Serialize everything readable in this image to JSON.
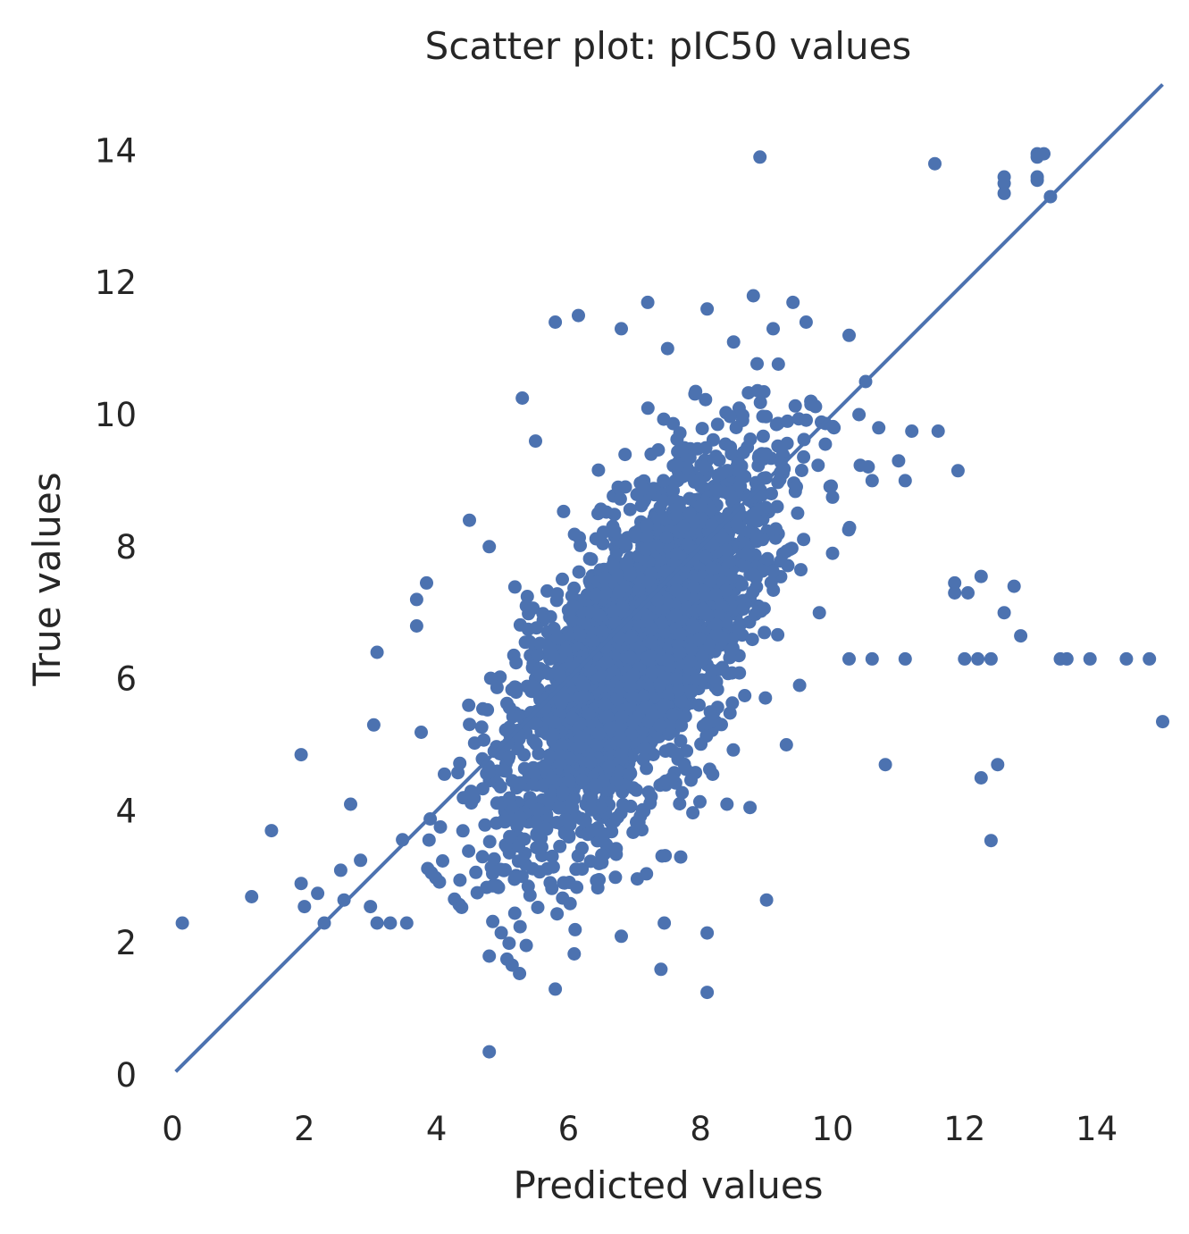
{
  "chart_data": {
    "type": "scatter",
    "title": "Scatter plot: pIC50 values",
    "xlabel": "Predicted values",
    "ylabel": "True values",
    "xlim": [
      0,
      15
    ],
    "ylim": [
      0,
      15
    ],
    "xticks": [
      "0",
      "2",
      "4",
      "6",
      "8",
      "10",
      "12",
      "14"
    ],
    "yticks": [
      "0",
      "2",
      "4",
      "6",
      "8",
      "10",
      "12",
      "14"
    ],
    "grid": false,
    "color": "#4c72b0",
    "reference_line": {
      "x": [
        0.05,
        15
      ],
      "y": [
        0.05,
        15
      ]
    },
    "series": [
      {
        "points": [
          [
            0.15,
            2.3
          ],
          [
            1.2,
            2.7
          ],
          [
            1.5,
            3.7
          ],
          [
            1.95,
            2.9
          ],
          [
            2.0,
            2.55
          ],
          [
            2.2,
            2.75
          ],
          [
            2.3,
            2.3
          ],
          [
            2.55,
            3.1
          ],
          [
            2.6,
            2.65
          ],
          [
            2.85,
            3.25
          ],
          [
            3.0,
            2.55
          ],
          [
            3.1,
            2.3
          ],
          [
            3.3,
            2.3
          ],
          [
            3.55,
            2.3
          ],
          [
            1.95,
            4.85
          ],
          [
            3.1,
            6.4
          ],
          [
            3.7,
            7.2
          ],
          [
            3.85,
            7.45
          ],
          [
            3.7,
            6.8
          ],
          [
            3.05,
            5.3
          ],
          [
            2.7,
            4.1
          ],
          [
            5.8,
            11.4
          ],
          [
            6.15,
            11.5
          ],
          [
            5.3,
            10.25
          ],
          [
            7.2,
            11.7
          ],
          [
            8.1,
            11.6
          ],
          [
            8.8,
            11.8
          ],
          [
            9.4,
            11.7
          ],
          [
            6.8,
            11.3
          ],
          [
            7.5,
            11.0
          ],
          [
            8.5,
            11.1
          ],
          [
            9.1,
            11.3
          ],
          [
            9.6,
            11.4
          ],
          [
            10.25,
            11.2
          ],
          [
            10.5,
            10.5
          ],
          [
            10.4,
            10.0
          ],
          [
            10.7,
            9.8
          ],
          [
            11.0,
            9.3
          ],
          [
            11.1,
            9.0
          ],
          [
            11.6,
            9.75
          ],
          [
            11.9,
            9.15
          ],
          [
            11.2,
            9.75
          ],
          [
            10.6,
            9.0
          ],
          [
            10.0,
            8.75
          ],
          [
            10.0,
            7.9
          ],
          [
            9.8,
            7.0
          ],
          [
            4.5,
            8.4
          ],
          [
            5.5,
            9.6
          ],
          [
            4.8,
            8.0
          ],
          [
            4.8,
            1.8
          ],
          [
            4.8,
            0.35
          ],
          [
            5.8,
            1.3
          ],
          [
            6.1,
            2.2
          ],
          [
            6.8,
            2.1
          ],
          [
            7.4,
            1.6
          ],
          [
            7.45,
            2.3
          ],
          [
            8.1,
            1.25
          ],
          [
            8.1,
            2.15
          ],
          [
            9.0,
            2.65
          ],
          [
            7.7,
            3.3
          ],
          [
            8.4,
            4.1
          ],
          [
            8.75,
            4.05
          ],
          [
            9.3,
            5.0
          ],
          [
            9.5,
            5.9
          ],
          [
            10.25,
            6.3
          ],
          [
            10.6,
            6.3
          ],
          [
            11.1,
            6.3
          ],
          [
            12.0,
            6.3
          ],
          [
            12.2,
            6.3
          ],
          [
            12.4,
            6.3
          ],
          [
            13.45,
            6.3
          ],
          [
            13.55,
            6.3
          ],
          [
            13.9,
            6.3
          ],
          [
            14.45,
            6.3
          ],
          [
            14.8,
            6.3
          ],
          [
            15.0,
            5.35
          ],
          [
            11.85,
            7.3
          ],
          [
            11.85,
            7.45
          ],
          [
            12.05,
            7.3
          ],
          [
            12.25,
            7.55
          ],
          [
            12.6,
            7.0
          ],
          [
            12.75,
            7.4
          ],
          [
            12.85,
            6.65
          ],
          [
            10.8,
            4.7
          ],
          [
            12.25,
            4.5
          ],
          [
            12.5,
            4.7
          ],
          [
            12.4,
            3.55
          ],
          [
            8.9,
            13.9
          ],
          [
            11.55,
            13.8
          ],
          [
            12.6,
            13.6
          ],
          [
            12.6,
            13.5
          ],
          [
            12.6,
            13.35
          ],
          [
            13.1,
            13.95
          ],
          [
            13.1,
            13.9
          ],
          [
            13.2,
            13.95
          ],
          [
            13.1,
            13.6
          ],
          [
            13.1,
            13.55
          ],
          [
            13.3,
            13.3
          ]
        ]
      }
    ],
    "cluster": {
      "center": [
        7.0,
        6.4
      ],
      "slope": 1.0,
      "spread_along": 1.3,
      "spread_across": 0.62,
      "count": 2600
    }
  }
}
